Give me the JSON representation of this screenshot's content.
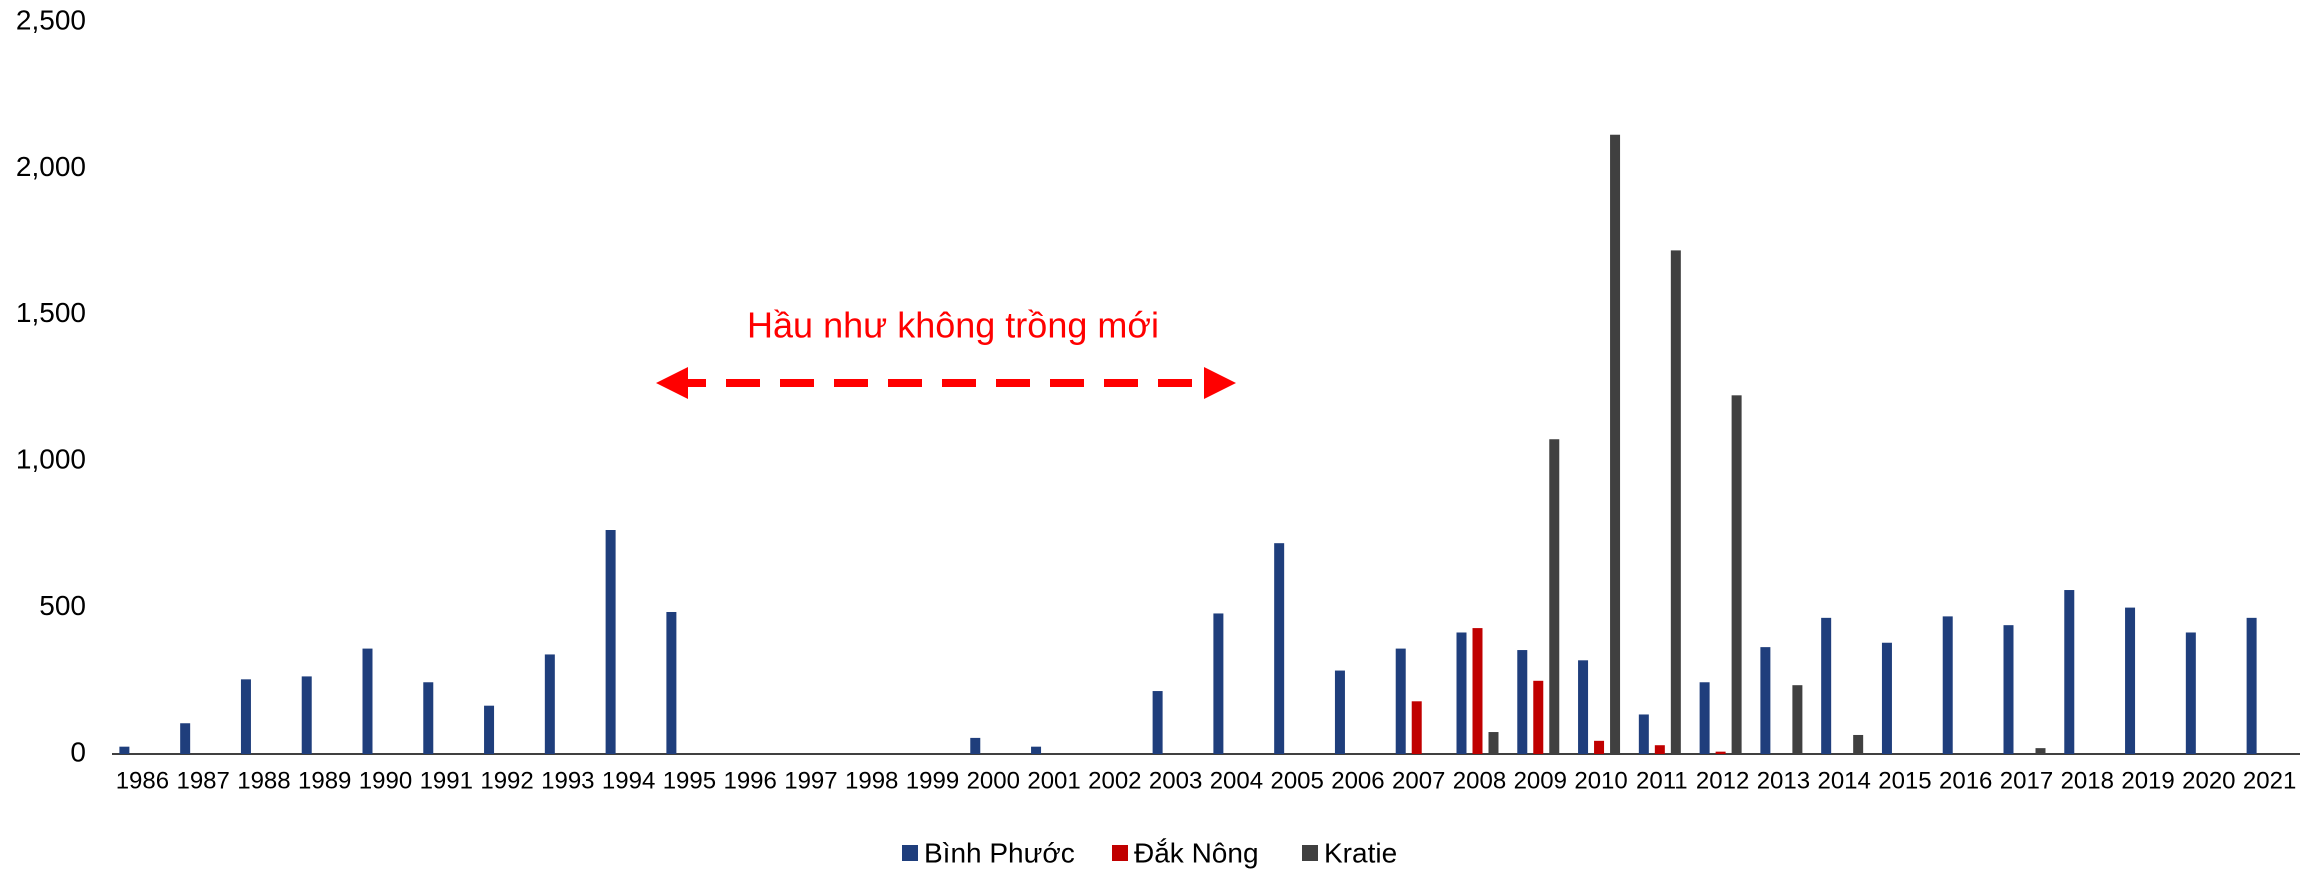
{
  "chart_data": {
    "type": "bar",
    "categories": [
      "1986",
      "1987",
      "1988",
      "1989",
      "1990",
      "1991",
      "1992",
      "1993",
      "1994",
      "1995",
      "1996",
      "1997",
      "1998",
      "1999",
      "2000",
      "2001",
      "2002",
      "2003",
      "2004",
      "2005",
      "2006",
      "2007",
      "2008",
      "2009",
      "2010",
      "2011",
      "2012",
      "2013",
      "2014",
      "2015",
      "2016",
      "2017",
      "2018",
      "2019",
      "2020",
      "2021"
    ],
    "series": [
      {
        "name": "Bình Phước",
        "color": "#1f3e7c",
        "values": [
          25,
          105,
          255,
          265,
          360,
          245,
          165,
          340,
          765,
          485,
          0,
          0,
          0,
          0,
          55,
          25,
          0,
          215,
          480,
          720,
          285,
          360,
          415,
          355,
          320,
          135,
          245,
          365,
          465,
          380,
          470,
          440,
          560,
          500,
          415,
          465
        ]
      },
      {
        "name": "Đắk Nông",
        "color": "#c00000",
        "values": [
          0,
          0,
          0,
          0,
          0,
          0,
          0,
          0,
          0,
          0,
          0,
          0,
          0,
          0,
          0,
          0,
          0,
          0,
          0,
          0,
          0,
          180,
          430,
          250,
          45,
          30,
          8,
          0,
          0,
          0,
          0,
          0,
          0,
          0,
          0,
          0
        ]
      },
      {
        "name": "Kratie",
        "color": "#404040",
        "values": [
          0,
          0,
          0,
          0,
          0,
          0,
          0,
          0,
          0,
          0,
          0,
          0,
          0,
          0,
          0,
          0,
          0,
          0,
          0,
          0,
          0,
          0,
          75,
          1075,
          2115,
          1720,
          1225,
          235,
          65,
          0,
          0,
          20,
          0,
          0,
          0,
          0
        ]
      }
    ],
    "annotation": "Hầu như không trồng mới",
    "ylim": [
      0,
      2500
    ],
    "yticks": [
      0,
      {
        "value": 500,
        "label": "500"
      },
      {
        "value": 1000,
        "label": "1,000"
      },
      {
        "value": 1500,
        "label": "1,500"
      },
      {
        "value": 2000,
        "label": "2,000"
      },
      {
        "value": 2500,
        "label": "2,500"
      }
    ],
    "grid": false,
    "legend": "bottom"
  }
}
